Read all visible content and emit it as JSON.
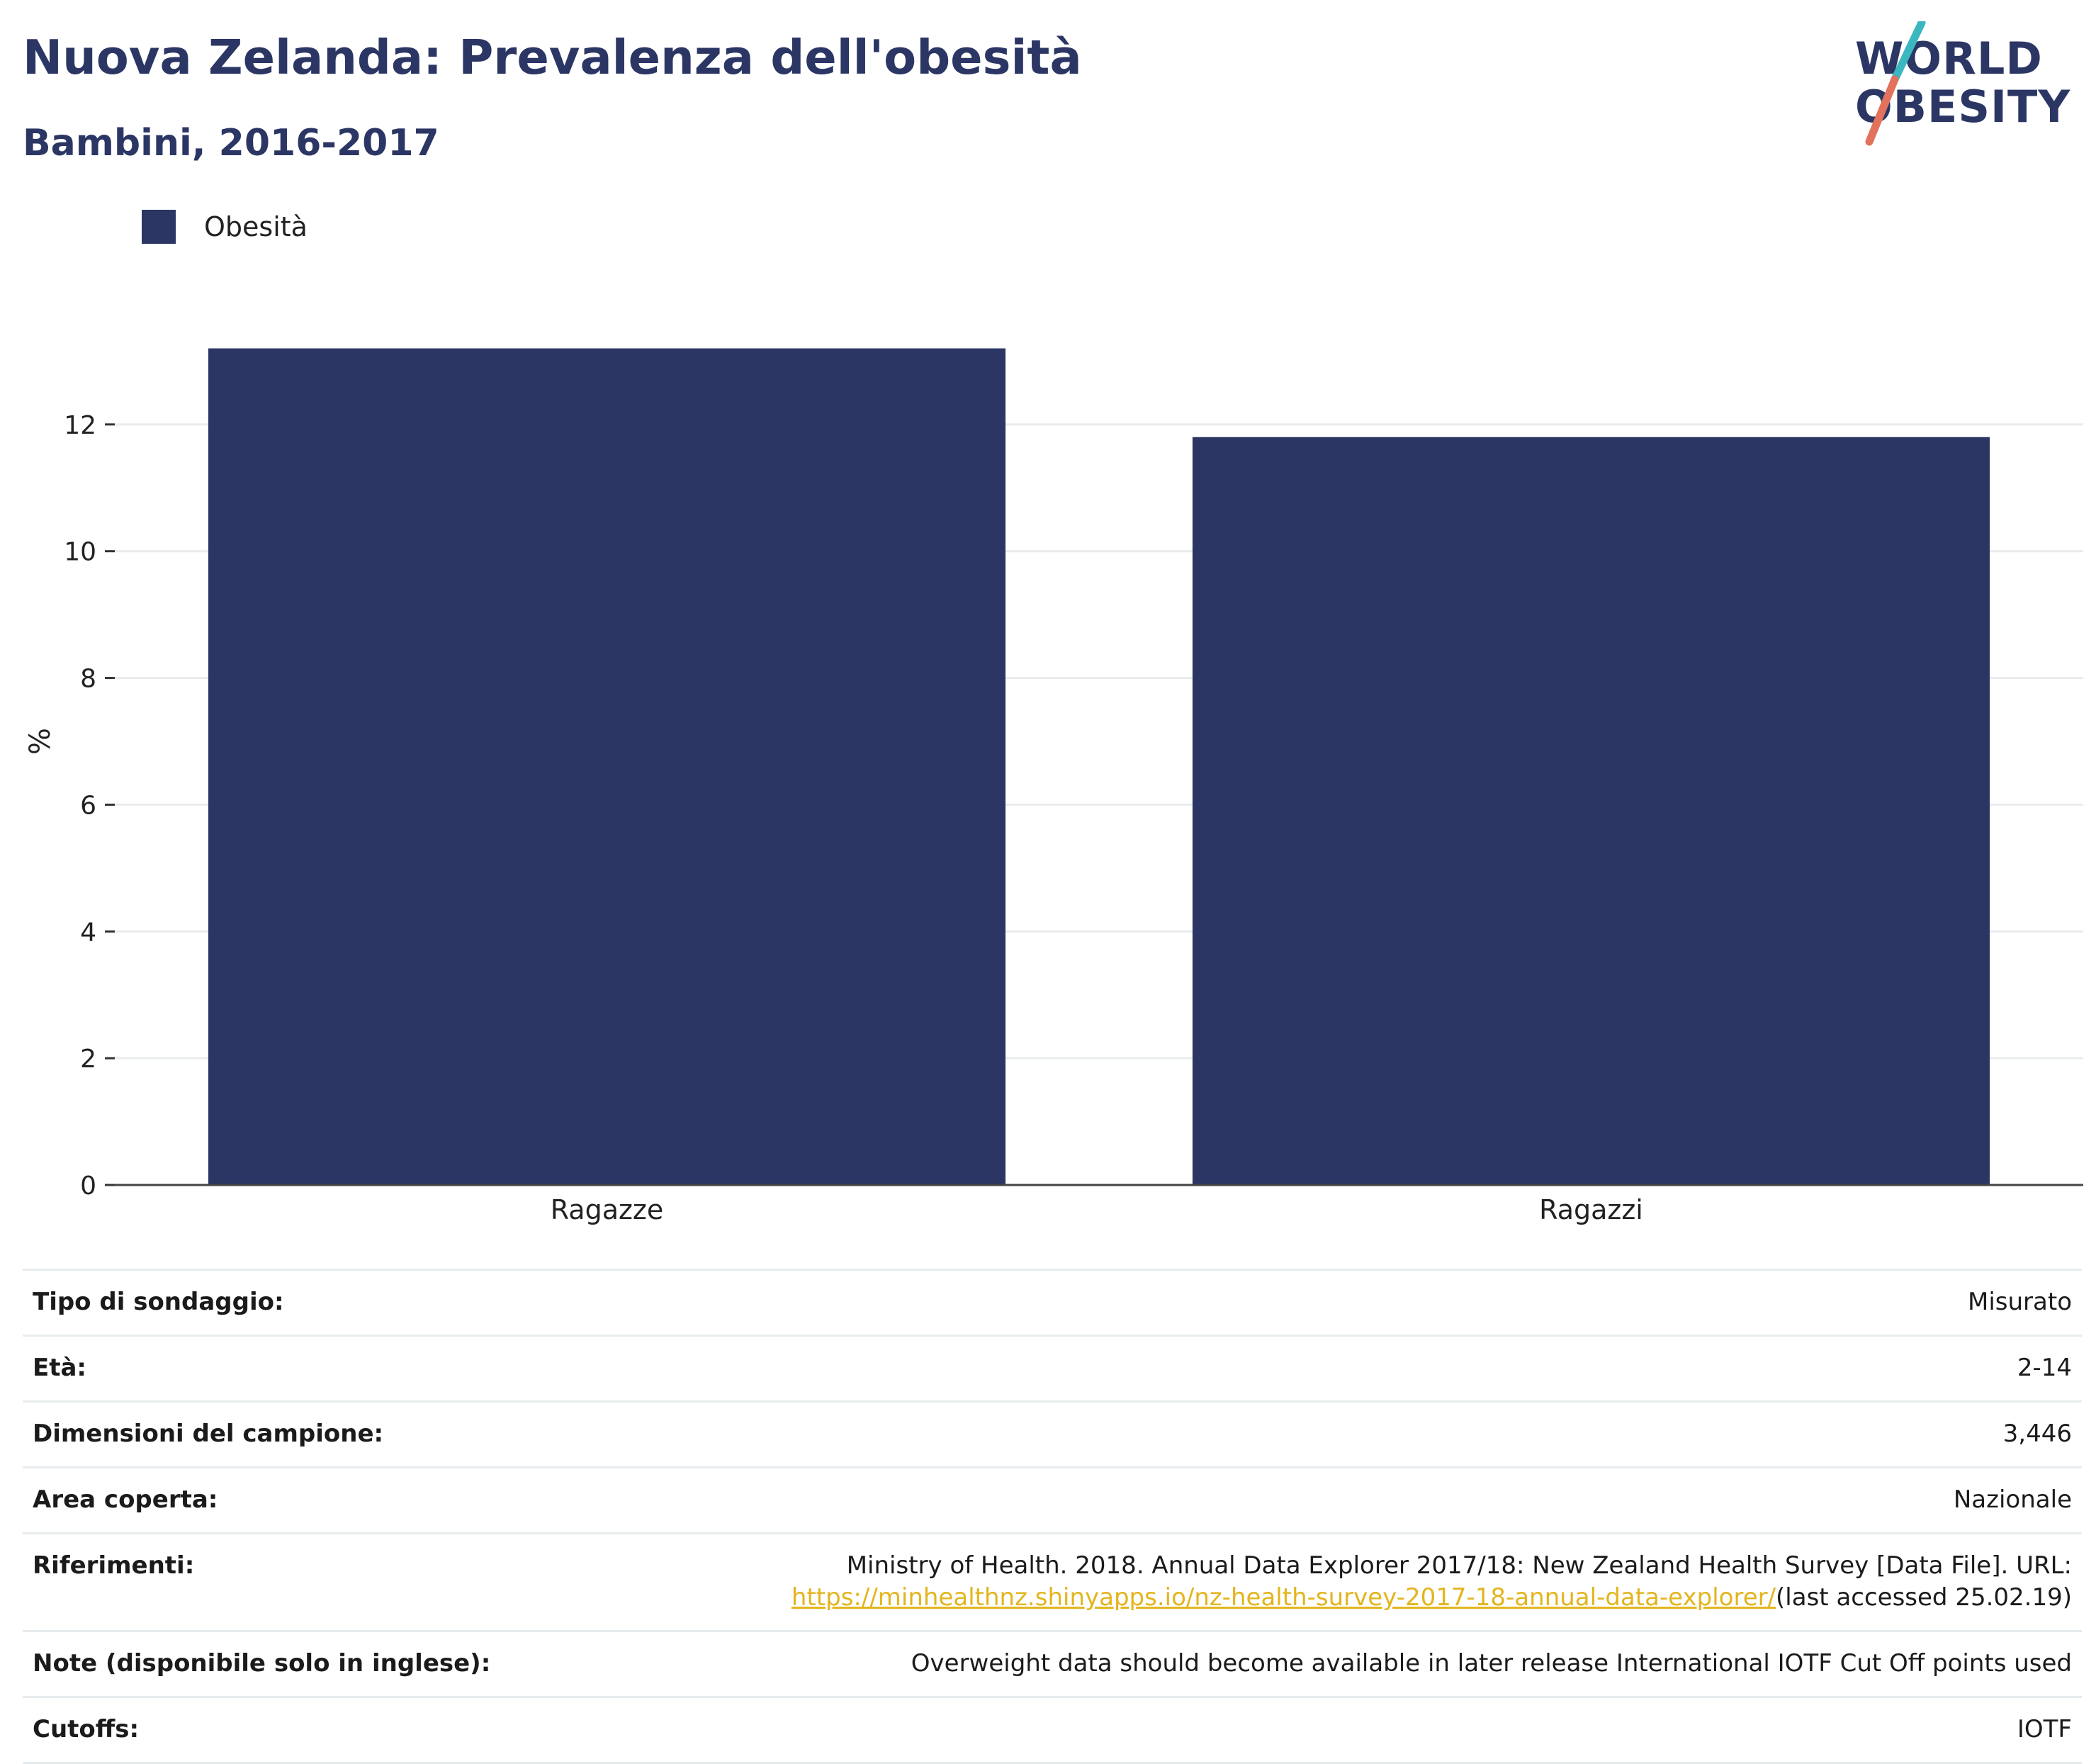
{
  "header": {
    "title": "Nuova Zelanda: Prevalenza dell'obesità",
    "subtitle": "Bambini, 2016-2017"
  },
  "logo": {
    "line1": "WORLD",
    "line2": "OBESITY",
    "colors": {
      "text": "#2b3664",
      "slash_top": "#3ab7bf",
      "slash_bottom": "#e2725b"
    }
  },
  "legend": {
    "items": [
      {
        "label": "Obesità",
        "color": "#2b3664"
      }
    ]
  },
  "chart_data": {
    "type": "bar",
    "categories": [
      "Ragazze",
      "Ragazzi"
    ],
    "series": [
      {
        "name": "Obesità",
        "values": [
          13.2,
          11.8
        ],
        "color": "#2b3664"
      }
    ],
    "title": "",
    "xlabel": "",
    "ylabel": "%",
    "ylim": [
      0,
      14
    ],
    "yticks": [
      0,
      2,
      4,
      6,
      8,
      10,
      12
    ],
    "grid": true,
    "legend_position": "top-left"
  },
  "info": {
    "rows": [
      {
        "label": "Tipo di sondaggio:",
        "value": "Misurato"
      },
      {
        "label": "Età:",
        "value": "2-14"
      },
      {
        "label": "Dimensioni del campione:",
        "value": "3,446"
      },
      {
        "label": "Area coperta:",
        "value": "Nazionale"
      }
    ],
    "references": {
      "label": "Riferimenti:",
      "text": "Ministry of Health. 2018. Annual Data Explorer 2017/18: New Zealand Health Survey [Data File]. URL:",
      "link": "https://minhealthnz.shinyapps.io/nz-health-survey-2017-18-annual-data-explorer/",
      "suffix": "(last accessed 25.02.19)"
    },
    "notes": {
      "label": "Note (disponibile solo in inglese):",
      "value": "Overweight data should become available in later release International IOTF Cut Off points used"
    },
    "cutoffs": {
      "label": "Cutoffs:",
      "value": "IOTF"
    }
  }
}
